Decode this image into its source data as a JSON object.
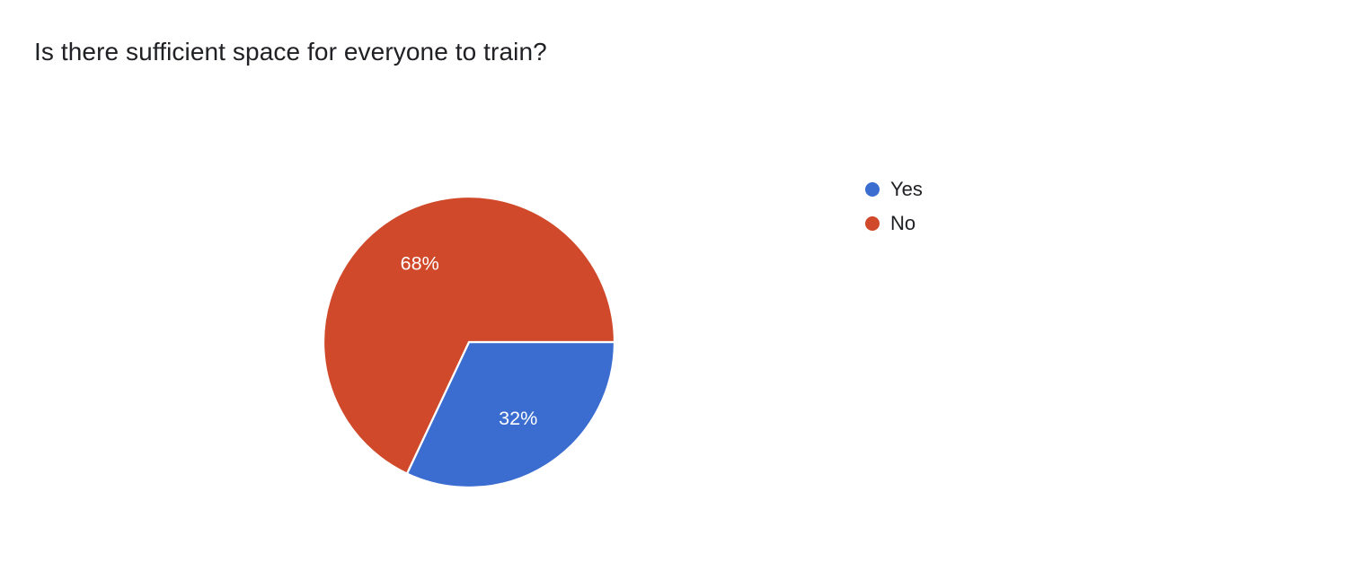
{
  "page": {
    "title": "Is there sufficient space for everyone to train?"
  },
  "chart_data": {
    "type": "pie",
    "title": "Is there sufficient space for everyone to train?",
    "categories": [
      "Yes",
      "No"
    ],
    "values": [
      32,
      68
    ],
    "unit": "%",
    "slice_labels": [
      "32%",
      "68%"
    ],
    "colors": [
      "#3b6dd1",
      "#d0492a"
    ],
    "slice_border_color": "#ffffff",
    "start_angle_deg": 0,
    "direction": "clockwise",
    "legend_position": "right",
    "label_color": "#ffffff"
  },
  "legend": {
    "items": [
      {
        "label": "Yes",
        "color": "#3b6dd1"
      },
      {
        "label": "No",
        "color": "#d0492a"
      }
    ]
  }
}
